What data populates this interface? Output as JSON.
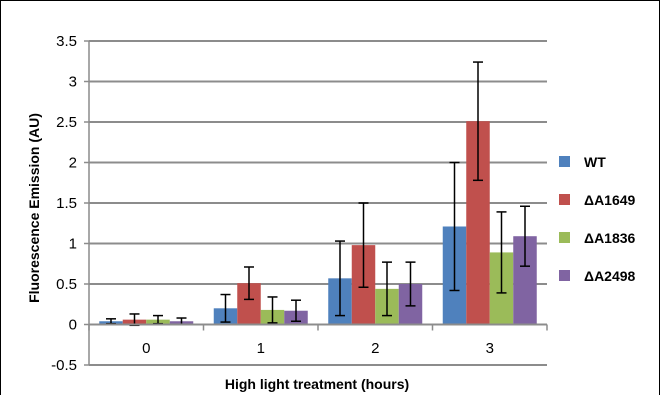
{
  "chart_data": {
    "type": "bar",
    "categories": [
      "0",
      "1",
      "2",
      "3"
    ],
    "series": [
      {
        "name": "WT",
        "color": "#4F81BD",
        "values": [
          0.04,
          0.2,
          0.57,
          1.21
        ],
        "errors": [
          0.03,
          0.17,
          0.46,
          0.79
        ]
      },
      {
        "name": "ΔA1649",
        "color": "#C0504D",
        "values": [
          0.06,
          0.51,
          0.98,
          2.51
        ],
        "errors": [
          0.07,
          0.2,
          0.52,
          0.73
        ]
      },
      {
        "name": "ΔA1836",
        "color": "#9BBB59",
        "values": [
          0.06,
          0.18,
          0.44,
          0.89
        ],
        "errors": [
          0.05,
          0.16,
          0.33,
          0.5
        ]
      },
      {
        "name": "ΔA2498",
        "color": "#8064A2",
        "values": [
          0.04,
          0.17,
          0.5,
          1.09
        ],
        "errors": [
          0.04,
          0.13,
          0.27,
          0.37
        ]
      }
    ],
    "yticks": [
      "-0.5",
      "0",
      "0.5",
      "1",
      "1.5",
      "2",
      "2.5",
      "3",
      "3.5"
    ],
    "ylim": [
      -0.5,
      3.5
    ],
    "xlabel": "High light treatment (hours)",
    "ylabel": "Fluorescence Emission (AU)",
    "grid": true,
    "legend": "right"
  }
}
